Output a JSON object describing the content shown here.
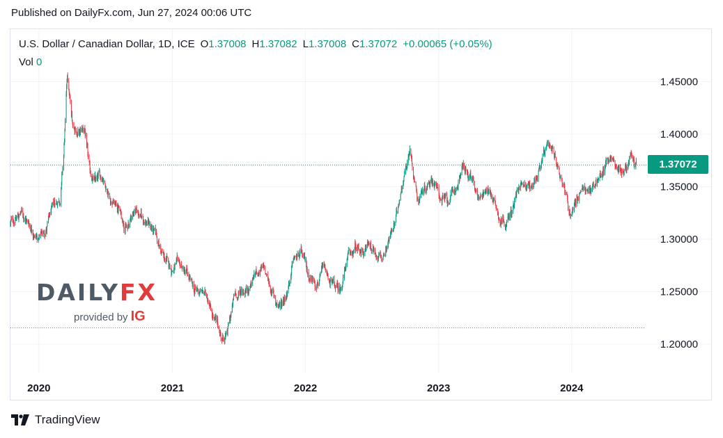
{
  "header": {
    "published": "Published on DailyFx.com, Jun 27, 2024 00:06 UTC"
  },
  "legend": {
    "symbol": "U.S. Dollar / Canadian Dollar, 1D, ICE",
    "open_label": "O",
    "open": "1.37008",
    "high_label": "H",
    "high": "1.37082",
    "low_label": "L",
    "low": "1.37008",
    "close_label": "C",
    "close": "1.37072",
    "change": "+0.00065 (+0.05%)",
    "vol_label": "Vol",
    "vol": "0"
  },
  "price_tag": "1.37072",
  "watermark": {
    "daily": "DAILY",
    "fx": "FX",
    "provided": "provided by",
    "ig": "IG"
  },
  "footer": {
    "brand": "TradingView",
    "icon": "tradingview-logo-icon"
  },
  "colors": {
    "up": "#089981",
    "down": "#f23645",
    "grid": "#f0f3fa",
    "text": "#131722",
    "current_line": "#089981",
    "low_line": "#f23645"
  },
  "chart_data": {
    "type": "candlestick",
    "title": "U.S. Dollar / Canadian Dollar, 1D, ICE",
    "xlabel": "",
    "ylabel": "",
    "x_ticks": [
      "2020",
      "2021",
      "2022",
      "2023",
      "2024"
    ],
    "y_ticks": [
      "1.45000",
      "1.40000",
      "1.35000",
      "1.30000",
      "1.25000",
      "1.20000"
    ],
    "ylim": [
      1.17,
      1.48
    ],
    "xlim": [
      "2019-10-15",
      "2024-07-20"
    ],
    "grid": true,
    "current_price": 1.37072,
    "reference_low": 1.2155,
    "series": [
      {
        "x": [
          "2019-10-15",
          "2019-11-15",
          "2019-12-15",
          "2020-01-01",
          "2020-01-20",
          "2020-02-10",
          "2020-02-28",
          "2020-03-09",
          "2020-03-19",
          "2020-04-01",
          "2020-04-20",
          "2020-05-05",
          "2020-05-20",
          "2020-06-05",
          "2020-06-25",
          "2020-07-15",
          "2020-08-05",
          "2020-08-31",
          "2020-09-20",
          "2020-10-10",
          "2020-10-30",
          "2020-11-20",
          "2020-12-10",
          "2020-12-31",
          "2021-01-20",
          "2021-02-10",
          "2021-03-01",
          "2021-03-20",
          "2021-04-10",
          "2021-04-30",
          "2021-05-20",
          "2021-06-01",
          "2021-06-20",
          "2021-07-10",
          "2021-07-30",
          "2021-08-20",
          "2021-09-10",
          "2021-09-30",
          "2021-10-20",
          "2021-11-10",
          "2021-11-30",
          "2021-12-20",
          "2022-01-10",
          "2022-01-30",
          "2022-02-20",
          "2022-03-15",
          "2022-04-05",
          "2022-04-25",
          "2022-05-15",
          "2022-06-05",
          "2022-06-20",
          "2022-07-10",
          "2022-07-30",
          "2022-08-15",
          "2022-09-05",
          "2022-09-25",
          "2022-10-15",
          "2022-11-05",
          "2022-11-25",
          "2022-12-15",
          "2023-01-05",
          "2023-01-25",
          "2023-02-15",
          "2023-03-10",
          "2023-03-31",
          "2023-04-20",
          "2023-05-10",
          "2023-05-31",
          "2023-06-20",
          "2023-07-15",
          "2023-08-05",
          "2023-08-25",
          "2023-09-15",
          "2023-10-05",
          "2023-10-25",
          "2023-11-15",
          "2023-12-05",
          "2023-12-28",
          "2024-01-15",
          "2024-02-05",
          "2024-02-25",
          "2024-03-15",
          "2024-04-05",
          "2024-04-16",
          "2024-05-05",
          "2024-05-25",
          "2024-06-10",
          "2024-06-26"
        ],
        "y": [
          1.315,
          1.325,
          1.31,
          1.3,
          1.31,
          1.33,
          1.34,
          1.38,
          1.455,
          1.41,
          1.4,
          1.405,
          1.36,
          1.355,
          1.36,
          1.34,
          1.33,
          1.31,
          1.33,
          1.32,
          1.315,
          1.3,
          1.28,
          1.272,
          1.275,
          1.265,
          1.25,
          1.25,
          1.245,
          1.22,
          1.205,
          1.21,
          1.245,
          1.25,
          1.255,
          1.27,
          1.27,
          1.25,
          1.235,
          1.25,
          1.28,
          1.285,
          1.265,
          1.26,
          1.27,
          1.255,
          1.25,
          1.28,
          1.29,
          1.285,
          1.295,
          1.29,
          1.28,
          1.3,
          1.315,
          1.36,
          1.385,
          1.34,
          1.35,
          1.36,
          1.34,
          1.335,
          1.345,
          1.37,
          1.355,
          1.34,
          1.35,
          1.34,
          1.32,
          1.32,
          1.345,
          1.355,
          1.35,
          1.37,
          1.385,
          1.375,
          1.36,
          1.325,
          1.34,
          1.345,
          1.35,
          1.355,
          1.375,
          1.38,
          1.368,
          1.367,
          1.375,
          1.3707
        ]
      }
    ]
  }
}
